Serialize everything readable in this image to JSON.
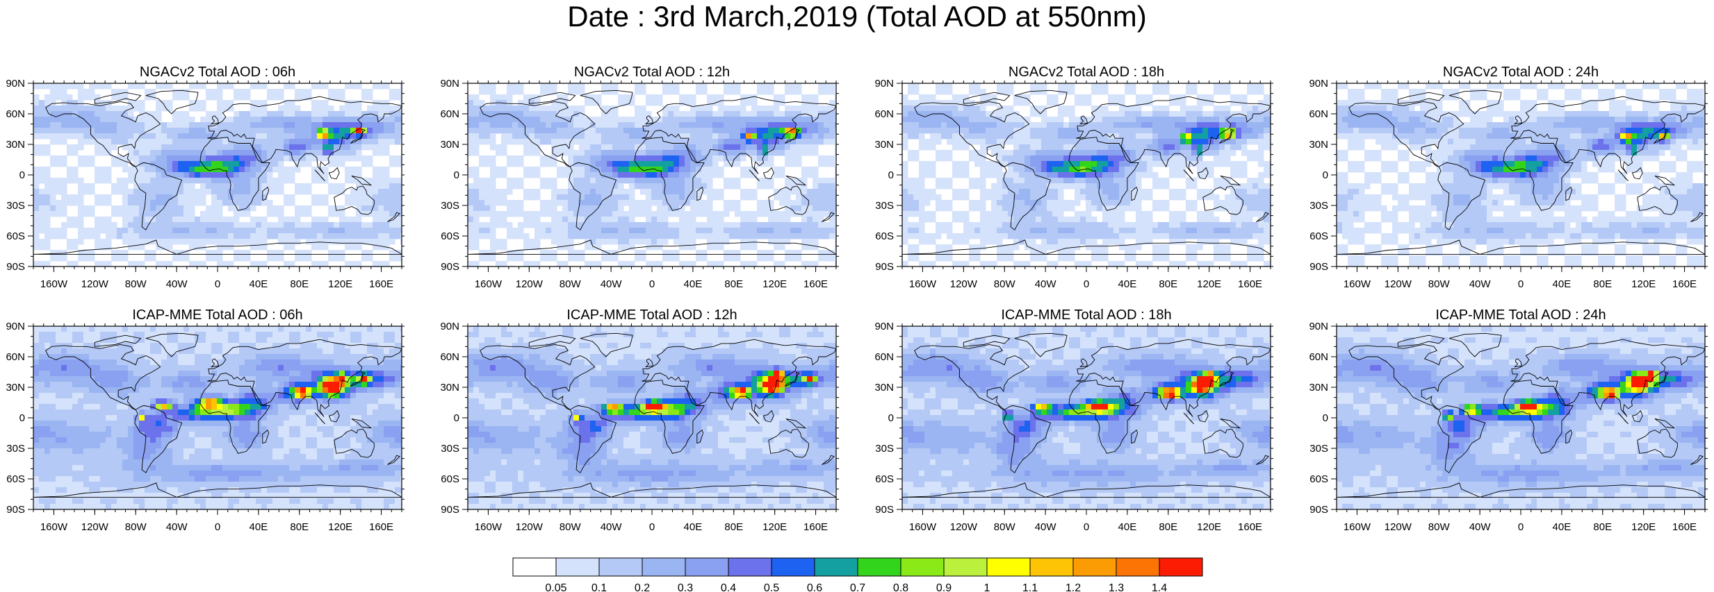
{
  "title": "Date : 3rd March,2019 (Total AOD at 550nm)",
  "panels": [
    {
      "title": "NGACv2 Total AOD : 06h",
      "model": "NGACv2",
      "hour": "06h"
    },
    {
      "title": "NGACv2 Total AOD : 12h",
      "model": "NGACv2",
      "hour": "12h"
    },
    {
      "title": "NGACv2 Total AOD : 18h",
      "model": "NGACv2",
      "hour": "18h"
    },
    {
      "title": "NGACv2 Total AOD : 24h",
      "model": "NGACv2",
      "hour": "24h"
    },
    {
      "title": "ICAP-MME Total AOD : 06h",
      "model": "ICAP-MME",
      "hour": "06h"
    },
    {
      "title": "ICAP-MME Total AOD : 12h",
      "model": "ICAP-MME",
      "hour": "12h"
    },
    {
      "title": "ICAP-MME Total AOD : 18h",
      "model": "ICAP-MME",
      "hour": "18h"
    },
    {
      "title": "ICAP-MME Total AOD : 24h",
      "model": "ICAP-MME",
      "hour": "24h"
    }
  ],
  "lat_ticks": [
    "90N",
    "60N",
    "30N",
    "0",
    "30S",
    "60S",
    "90S"
  ],
  "lon_ticks": [
    "160W",
    "120W",
    "80W",
    "40W",
    "0",
    "40E",
    "80E",
    "120E",
    "160E"
  ],
  "colorbar": {
    "labels": [
      "0.05",
      "0.1",
      "0.2",
      "0.3",
      "0.4",
      "0.5",
      "0.6",
      "0.7",
      "0.8",
      "0.9",
      "1",
      "1.1",
      "1.2",
      "1.3",
      "1.4"
    ],
    "colors": [
      "#ffffff",
      "#d5e2fb",
      "#b4c9f6",
      "#9bb5f3",
      "#8aa0f0",
      "#6b72ec",
      "#1d62f0",
      "#14a0a0",
      "#33d51c",
      "#8ce918",
      "#bbf13c",
      "#ffff00",
      "#fcc404",
      "#fc9c04",
      "#fc7404",
      "#fc1c04"
    ]
  }
}
